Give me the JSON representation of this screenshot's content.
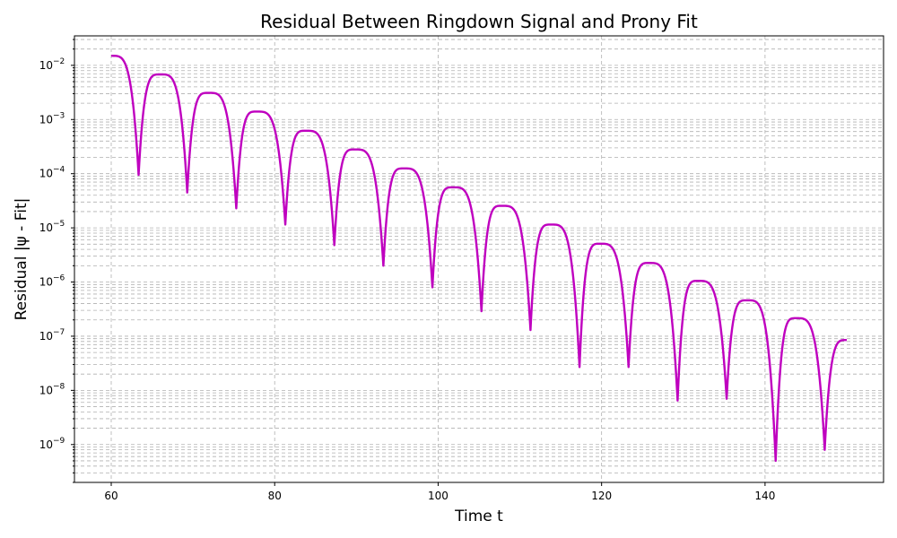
{
  "chart_data": {
    "type": "line",
    "title": "Residual Between Ringdown Signal and Prony Fit",
    "xlabel": "Time t",
    "ylabel": "Residual |ψ - Fit|",
    "xlim": [
      55.5,
      154.5
    ],
    "ylim": [
      2e-10,
      0.035
    ],
    "yscale": "log",
    "grid": true,
    "line_color": "#bf00bf",
    "x_ticks": [
      60,
      80,
      100,
      120,
      140
    ],
    "y_ticks": [
      {
        "value": 1e-09,
        "base": "10",
        "exp": "−9"
      },
      {
        "value": 1e-08,
        "base": "10",
        "exp": "−8"
      },
      {
        "value": 1e-07,
        "base": "10",
        "exp": "−7"
      },
      {
        "value": 1e-06,
        "base": "10",
        "exp": "−6"
      },
      {
        "value": 1e-05,
        "base": "10",
        "exp": "−5"
      },
      {
        "value": 0.0001,
        "base": "10",
        "exp": "−4"
      },
      {
        "value": 0.001,
        "base": "10",
        "exp": "−3"
      },
      {
        "value": 0.01,
        "base": "10",
        "exp": "−2"
      }
    ],
    "series": [
      {
        "x": [
          60,
          63.35,
          66,
          69.3,
          71.9,
          75.3,
          77.8,
          81.3,
          83.8,
          87.3,
          89.8,
          93.3,
          95.8,
          99.3,
          101.8,
          105.3,
          107.8,
          111.3,
          113.8,
          117.3,
          119.8,
          123.3,
          125.8,
          129.3,
          131.8,
          135.3,
          137.8,
          141.3,
          143.8,
          147.3,
          150
        ],
        "y": [
          0.015,
          9.5e-05,
          0.0068,
          4.5e-05,
          0.0031,
          2.3e-05,
          0.0014,
          1.15e-05,
          0.00062,
          4.8e-06,
          0.00028,
          2e-06,
          0.000125,
          8e-07,
          5.6e-05,
          2.9e-07,
          2.55e-05,
          1.3e-07,
          1.15e-05,
          2.7e-08,
          5.1e-06,
          2.7e-08,
          2.25e-06,
          6.5e-09,
          1.05e-06,
          7e-09,
          4.6e-07,
          5e-10,
          2.15e-07,
          8e-10,
          8.5e-08
        ]
      }
    ]
  }
}
